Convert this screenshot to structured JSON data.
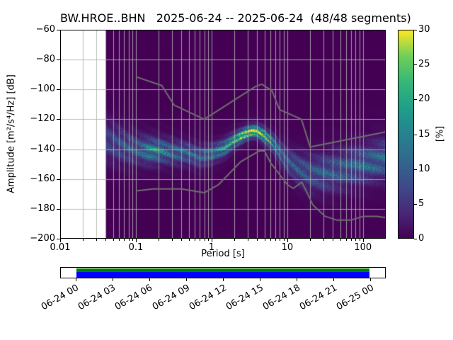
{
  "chart_data": {
    "type": "heatmap",
    "title": "BW.HROE..BHN   2025-06-24 -- 2025-06-24  (48/48 segments)",
    "network_station": "BW.HROE..BHN",
    "date_start": "2025-06-24",
    "date_end": "2025-06-24",
    "segments_used": 48,
    "segments_total": 48,
    "xlabel": "Period [s]",
    "ylabel": "Amplitude [m²/s⁴/Hz] [dB]",
    "xscale": "log",
    "xlim": [
      0.01,
      200
    ],
    "ylim": [
      -200,
      -60
    ],
    "grid": true,
    "xticks": {
      "values": [
        0.01,
        0.1,
        1,
        10,
        100
      ],
      "labels": [
        "0.01",
        "0.1",
        "1",
        "10",
        "100"
      ]
    },
    "yticks": {
      "values": [
        -60,
        -80,
        -100,
        -120,
        -140,
        -160,
        -180,
        -200
      ],
      "labels": [
        "−60",
        "−80",
        "−100",
        "−120",
        "−140",
        "−160",
        "−180",
        "−200"
      ]
    },
    "colorbar": {
      "label": "[%]",
      "min": 0,
      "max": 30,
      "tick_values": [
        0,
        5,
        10,
        15,
        20,
        25,
        30
      ],
      "tick_labels": [
        "0",
        "5",
        "10",
        "15",
        "20",
        "25",
        "30"
      ],
      "colormap": "viridis"
    },
    "zero_probability_color": "#440154",
    "data_period_start": 0.04,
    "psd_distribution": {
      "periods": [
        0.04,
        0.07,
        0.1,
        0.15,
        0.2,
        0.3,
        0.5,
        0.7,
        1.0,
        1.5,
        2.0,
        2.5,
        3.0,
        3.5,
        4.0,
        5.0,
        6.5,
        8.0,
        10,
        14,
        20,
        30,
        50,
        80,
        120,
        180
      ],
      "mode_db": [
        -134,
        -138,
        -140,
        -141,
        -141,
        -142,
        -143,
        -145,
        -143,
        -139,
        -134,
        -131,
        -129,
        -128,
        -128,
        -131,
        -136,
        -142,
        -148,
        -153,
        -156,
        -156,
        -154,
        -151,
        -149,
        -147
      ],
      "sigma_db": [
        9,
        7,
        6,
        5.5,
        5,
        5,
        4.5,
        4.5,
        4,
        3.5,
        3,
        2.8,
        2.5,
        2.5,
        2.5,
        3,
        3.5,
        4.5,
        5.5,
        6.5,
        7.5,
        8,
        8,
        8,
        8,
        8
      ],
      "peak_percent": [
        7,
        9,
        10,
        16,
        17,
        12,
        12,
        11,
        13,
        18,
        22,
        27,
        30,
        30,
        29,
        24,
        16,
        12,
        10,
        10,
        9.5,
        10,
        10.5,
        11,
        12,
        12.5
      ]
    },
    "noise_models": {
      "color": "#6e6e6e",
      "high": [
        [
          0.1,
          -91.5
        ],
        [
          0.22,
          -97.4
        ],
        [
          0.32,
          -110.5
        ],
        [
          0.8,
          -120.0
        ],
        [
          3.8,
          -98.0
        ],
        [
          4.6,
          -96.5
        ],
        [
          6.3,
          -101.0
        ],
        [
          7.9,
          -113.5
        ],
        [
          15.4,
          -120.0
        ],
        [
          20.0,
          -138.5
        ],
        [
          200.0,
          -128.5
        ]
      ],
      "low": [
        [
          0.1,
          -168.0
        ],
        [
          0.17,
          -166.7
        ],
        [
          0.4,
          -166.7
        ],
        [
          0.8,
          -169.2
        ],
        [
          1.24,
          -163.7
        ],
        [
          2.4,
          -148.6
        ],
        [
          4.3,
          -141.1
        ],
        [
          5.0,
          -141.1
        ],
        [
          6.0,
          -149.0
        ],
        [
          10.0,
          -163.8
        ],
        [
          12.0,
          -166.3
        ],
        [
          15.6,
          -162.1
        ],
        [
          21.9,
          -177.5
        ],
        [
          31.6,
          -185.0
        ],
        [
          45.0,
          -187.5
        ],
        [
          70.0,
          -187.5
        ],
        [
          101.0,
          -185.0
        ],
        [
          154.0,
          -185.0
        ],
        [
          200.0,
          -185.9
        ]
      ]
    },
    "coverage": {
      "tick_labels": [
        "06-24 00",
        "06-24 03",
        "06-24 06",
        "06-24 09",
        "06-24 12",
        "06-24 15",
        "06-24 18",
        "06-24 21",
        "06-25 00"
      ],
      "fill_start_frac": 0.0476,
      "fill_end_frac": 0.9524,
      "data_color": "#008000",
      "segment_color": "#0000ff"
    }
  }
}
